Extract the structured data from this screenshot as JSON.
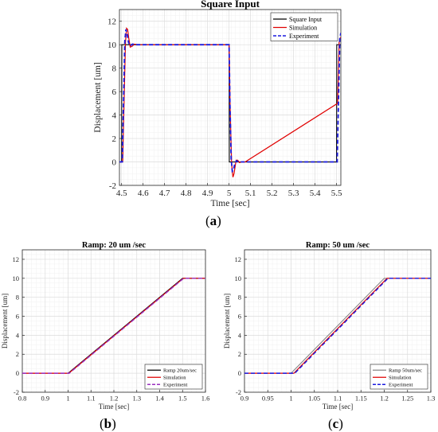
{
  "captions": {
    "a": "a",
    "b": "b",
    "c": "c"
  },
  "colors": {
    "black": "#000000",
    "red": "#e00000",
    "blue": "#1a1adf",
    "grid": "#e6e6e6",
    "gray": "#888888"
  },
  "chart_data": [
    {
      "type": "line",
      "title": "Square Input",
      "xlabel": "Time [sec]",
      "ylabel": "Displacement [um]",
      "xlim": [
        4.49,
        5.52
      ],
      "ylim": [
        -2,
        13
      ],
      "xticks": [
        4.5,
        4.6,
        4.7,
        4.8,
        4.9,
        5.0,
        5.1,
        5.2,
        5.3,
        5.4,
        5.5
      ],
      "xtick_labels": [
        "4.5",
        "4.6",
        "4.7",
        "4.8",
        "4.9",
        "5",
        "5.1",
        "5.2",
        "5.3",
        "5.4",
        "5.5"
      ],
      "yticks": [
        -2,
        0,
        2,
        4,
        6,
        8,
        10,
        12
      ],
      "yticks_labels": [
        "-2",
        "0",
        "2",
        "4",
        "6",
        "8",
        "10",
        "12"
      ],
      "grid": true,
      "legend_position": "top-right",
      "series": [
        {
          "name": "Square Input",
          "color": "#000000",
          "style": "solid",
          "x": [
            4.49,
            4.5,
            4.501,
            5.0,
            5.001,
            5.5,
            5.501,
            5.52
          ],
          "y": [
            0,
            0,
            10,
            10,
            0,
            0,
            10,
            10
          ]
        },
        {
          "name": "Simulation",
          "color": "#e00000",
          "style": "solid",
          "x": [
            4.49,
            4.505,
            4.512,
            4.518,
            4.523,
            4.528,
            4.533,
            4.54,
            4.548,
            4.56,
            4.575,
            5.0,
            5.005,
            5.012,
            5.018,
            5.023,
            5.028,
            5.033,
            5.04,
            5.048,
            5.06,
            5.075,
            5.505,
            5.512,
            5.518,
            5.52
          ],
          "y": [
            0,
            0,
            5.5,
            10.2,
            11.4,
            11.3,
            10.6,
            9.8,
            9.85,
            10.05,
            10,
            10,
            4.5,
            -0.2,
            -1.3,
            -1.0,
            -0.4,
            0.15,
            0.15,
            -0.05,
            0,
            0,
            5,
            10.2,
            10.6,
            10.6
          ]
        },
        {
          "name": "Experiment",
          "color": "#1a1adf",
          "style": "dashed",
          "x": [
            4.49,
            4.503,
            4.51,
            4.515,
            4.52,
            4.526,
            4.532,
            4.54,
            4.55,
            4.565,
            5.0,
            5.004,
            5.01,
            5.015,
            5.02,
            5.026,
            5.034,
            5.045,
            5.06,
            5.503,
            5.51,
            5.515,
            5.52
          ],
          "y": [
            0,
            0,
            6,
            10.3,
            11.3,
            10.9,
            10.2,
            9.9,
            10.05,
            10,
            10,
            5,
            0.2,
            -0.8,
            -0.7,
            -0.2,
            0.1,
            0,
            0,
            0,
            6,
            10.5,
            11.0
          ]
        }
      ]
    },
    {
      "type": "line",
      "title": "Ramp: 20 um /sec",
      "xlabel": "Time [sec]",
      "ylabel": "Displacement [um]",
      "xlim": [
        0.8,
        1.6
      ],
      "ylim": [
        -2,
        13
      ],
      "xticks": [
        0.8,
        0.9,
        1.0,
        1.1,
        1.2,
        1.3,
        1.4,
        1.5,
        1.6
      ],
      "xtick_labels": [
        "0.8",
        "0.9",
        "1",
        "1.1",
        "1.2",
        "1.3",
        "1.4",
        "1.5",
        "1.6"
      ],
      "yticks": [
        -2,
        0,
        2,
        4,
        6,
        8,
        10,
        12
      ],
      "yticks_labels": [
        "-2",
        "0",
        "2",
        "4",
        "6",
        "8",
        "10",
        "12"
      ],
      "grid": true,
      "legend_position": "bottom-right",
      "series": [
        {
          "name": "Ramp 20um/sec",
          "color": "#000000",
          "style": "solid",
          "x": [
            0.8,
            1.0,
            1.5,
            1.6
          ],
          "y": [
            0,
            0,
            10,
            10
          ]
        },
        {
          "name": "Simulation",
          "color": "#e00000",
          "style": "solid",
          "x": [
            0.8,
            1.003,
            1.503,
            1.6
          ],
          "y": [
            0,
            0,
            10,
            10
          ]
        },
        {
          "name": "Experiment",
          "color": "#9a2fbf",
          "style": "dashed",
          "x": [
            0.8,
            1.005,
            1.505,
            1.6
          ],
          "y": [
            0,
            0,
            10,
            10
          ]
        }
      ]
    },
    {
      "type": "line",
      "title": "Ramp: 50 um /sec",
      "xlabel": "Time [sec]",
      "ylabel": "Displacement [um]",
      "xlim": [
        0.9,
        1.3
      ],
      "ylim": [
        -2,
        13
      ],
      "xticks": [
        0.9,
        0.95,
        1.0,
        1.05,
        1.1,
        1.15,
        1.2,
        1.25,
        1.3
      ],
      "xtick_labels": [
        "0.9",
        "0.95",
        "1",
        "1.05",
        "1.1",
        "1.15",
        "1.2",
        "1.25",
        "1.3"
      ],
      "yticks": [
        -2,
        0,
        2,
        4,
        6,
        8,
        10,
        12
      ],
      "yticks_labels": [
        "-2",
        "0",
        "2",
        "4",
        "6",
        "8",
        "10",
        "12"
      ],
      "grid": true,
      "legend_position": "bottom-right",
      "series": [
        {
          "name": "Ramp 50um/sec",
          "color": "#888888",
          "style": "solid",
          "x": [
            0.9,
            1.0,
            1.2,
            1.3
          ],
          "y": [
            0,
            0,
            10,
            10
          ]
        },
        {
          "name": "Simulation",
          "color": "#e00000",
          "style": "solid",
          "x": [
            0.9,
            1.006,
            1.206,
            1.3
          ],
          "y": [
            0,
            0,
            10,
            10
          ]
        },
        {
          "name": "Experiment",
          "color": "#1a1adf",
          "style": "dashed",
          "x": [
            0.9,
            1.008,
            1.208,
            1.3
          ],
          "y": [
            0,
            0,
            10,
            10
          ]
        }
      ]
    }
  ]
}
